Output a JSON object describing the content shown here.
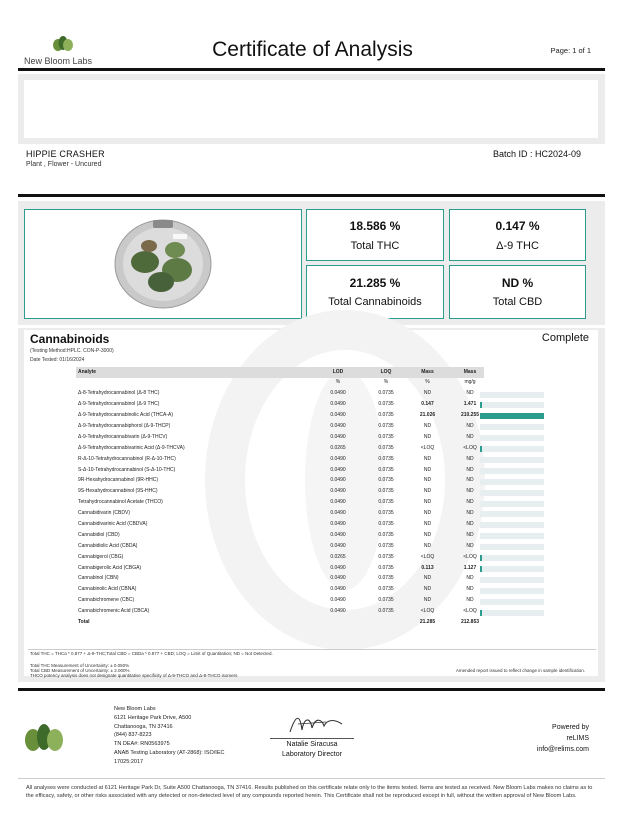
{
  "header": {
    "brand": "New Bloom Labs",
    "title": "Certificate of Analysis",
    "page": "Page: 1 of 1"
  },
  "product": {
    "name": "HIPPIE CRASHER",
    "type": "Plant , Flower - Uncured",
    "batch": "Batch ID : HC2024-09"
  },
  "stats": [
    {
      "value": "18.586 %",
      "label": "Total THC"
    },
    {
      "value": "0.147 %",
      "label": "Δ-9 THC"
    },
    {
      "value": "21.285 %",
      "label": "Total Cannabinoids"
    },
    {
      "value": "ND %",
      "label": "Total CBD"
    }
  ],
  "section": {
    "title": "Cannabinoids",
    "status": "Complete",
    "method": "(Testing Method:HPLC. CON-P-3000)",
    "date": "Date Tested: 01/16/2024"
  },
  "table": {
    "headers": [
      "Analyte",
      "LOD",
      "LOQ",
      "Mass",
      "Mass"
    ],
    "units": [
      "",
      "%",
      "%",
      "%",
      "mg/g"
    ],
    "rows": [
      {
        "name": "Δ-8-Tetrahydrocannabinol (Δ-8 THC)",
        "lod": "0.0490",
        "loq": "0.0735",
        "pct": "ND",
        "mg": "ND",
        "bold": false,
        "level": 0
      },
      {
        "name": "Δ-9-Tetrahydrocannabinol (Δ-9 THC)",
        "lod": "0.0490",
        "loq": "0.0735",
        "pct": "0.147",
        "mg": "1.471",
        "bold": true,
        "level": 0.007
      },
      {
        "name": "Δ-9-Tetrahydrocannabinolic Acid (THCA-A)",
        "lod": "0.0490",
        "loq": "0.0735",
        "pct": "21.026",
        "mg": "210.255",
        "bold": true,
        "level": 1
      },
      {
        "name": "Δ-9-Tetrahydrocannabiphorol (Δ-9-THCP)",
        "lod": "0.0490",
        "loq": "0.0735",
        "pct": "ND",
        "mg": "ND",
        "bold": false,
        "level": 0
      },
      {
        "name": "Δ-9-Tetrahydrocannabivarin (Δ-9-THCV)",
        "lod": "0.0490",
        "loq": "0.0735",
        "pct": "ND",
        "mg": "ND",
        "bold": false,
        "level": 0
      },
      {
        "name": "Δ-9-Tetrahydrocannabivarinic Acid (Δ-9-THCVA)",
        "lod": "0.0265",
        "loq": "0.0735",
        "pct": "<LOQ",
        "mg": "<LOQ",
        "bold": false,
        "level": 0.003
      },
      {
        "name": "R-Δ-10-Tetrahydrocannabinol (R-Δ-10-THC)",
        "lod": "0.0490",
        "loq": "0.0735",
        "pct": "ND",
        "mg": "ND",
        "bold": false,
        "level": 0
      },
      {
        "name": "S-Δ-10-Tetrahydrocannabinol (S-Δ-10-THC)",
        "lod": "0.0490",
        "loq": "0.0735",
        "pct": "ND",
        "mg": "ND",
        "bold": false,
        "level": 0
      },
      {
        "name": "9R-Hexahydrocannabinol (9R-HHC)",
        "lod": "0.0490",
        "loq": "0.0735",
        "pct": "ND",
        "mg": "ND",
        "bold": false,
        "level": 0
      },
      {
        "name": "9S-Hexahydrocannabinol (9S-HHC)",
        "lod": "0.0490",
        "loq": "0.0735",
        "pct": "ND",
        "mg": "ND",
        "bold": false,
        "level": 0
      },
      {
        "name": "Tetrahydrocannabinol Acetate (THCO)",
        "lod": "0.0490",
        "loq": "0.0735",
        "pct": "ND",
        "mg": "ND",
        "bold": false,
        "level": 0
      },
      {
        "name": "Cannabidivarin (CBDV)",
        "lod": "0.0490",
        "loq": "0.0735",
        "pct": "ND",
        "mg": "ND",
        "bold": false,
        "level": 0
      },
      {
        "name": "Cannabidivarinic Acid (CBDVA)",
        "lod": "0.0490",
        "loq": "0.0735",
        "pct": "ND",
        "mg": "ND",
        "bold": false,
        "level": 0
      },
      {
        "name": "Cannabidiol (CBD)",
        "lod": "0.0490",
        "loq": "0.0735",
        "pct": "ND",
        "mg": "ND",
        "bold": false,
        "level": 0
      },
      {
        "name": "Cannabidiolic Acid (CBDA)",
        "lod": "0.0490",
        "loq": "0.0735",
        "pct": "ND",
        "mg": "ND",
        "bold": false,
        "level": 0
      },
      {
        "name": "Cannabigerol (CBG)",
        "lod": "0.0265",
        "loq": "0.0735",
        "pct": "<LOQ",
        "mg": "<LOQ",
        "bold": false,
        "level": 0.003
      },
      {
        "name": "Cannabigerolic Acid (CBGA)",
        "lod": "0.0490",
        "loq": "0.0735",
        "pct": "0.113",
        "mg": "1.127",
        "bold": true,
        "level": 0.005
      },
      {
        "name": "Cannabinol (CBN)",
        "lod": "0.0490",
        "loq": "0.0735",
        "pct": "ND",
        "mg": "ND",
        "bold": false,
        "level": 0
      },
      {
        "name": "Cannabinolic Acid (CBNA)",
        "lod": "0.0490",
        "loq": "0.0735",
        "pct": "ND",
        "mg": "ND",
        "bold": false,
        "level": 0
      },
      {
        "name": "Cannabichromene (CBC)",
        "lod": "0.0490",
        "loq": "0.0735",
        "pct": "ND",
        "mg": "ND",
        "bold": false,
        "level": 0
      },
      {
        "name": "Cannabichromenic Acid (CBCA)",
        "lod": "0.0490",
        "loq": "0.0735",
        "pct": "<LOQ",
        "mg": "<LOQ",
        "bold": false,
        "level": 0.003
      }
    ],
    "total": {
      "name": "Total",
      "pct": "21.285",
      "mg": "212.853"
    }
  },
  "notes": {
    "formula": "Total THC = THCa * 0.877 + Δ-9-THC;Total CBD = CBDa * 0.877 + CBD; LOQ = Limit of Quantitation; ND = Not Detected.",
    "unc_thc": "Total THC Measurement of Uncertainty: ± 0.050%",
    "unc_cbd": "Total CBD Measurement of Uncertainty: ± 2.000%",
    "thco": "THCO potency analysis does not designate quantitative specificity of Δ-9-THCO and Δ-8-THCO isomers",
    "amended": "Amended report issued to reflect change in sample identification."
  },
  "lab": {
    "lines": [
      "New Bloom Labs",
      "6121 Heritage Park Drive, A500",
      "Chattanooga, TN 37416",
      "(844) 837-8223",
      "TN DEA#: RN0563975",
      "ANAB Testing Laboratory (AT-2868): ISO/IEC",
      "17025:2017"
    ],
    "signer": "Natalie Siracusa",
    "signer_title": "Laboratory Director",
    "powered_by": "Powered by",
    "powered_name": "reLIMS",
    "powered_email": "info@relims.com"
  },
  "disclaimer": "All analyses were conducted at 6121 Heritage Park Dr, Suite A500 Chattanooga, TN 37416. Results published on this certificate relate only to the items tested. Items are tested as received. New Bloom Labs makes no claims as to the efficacy, safety, or other risks associated with any detected or non-detected level of any compounds reported herein. This Certificate shall not be reproduced except in full, without the written approval of New Bloom Labs.",
  "colors": {
    "accent": "#2a9d8f",
    "panel": "#ececec"
  }
}
